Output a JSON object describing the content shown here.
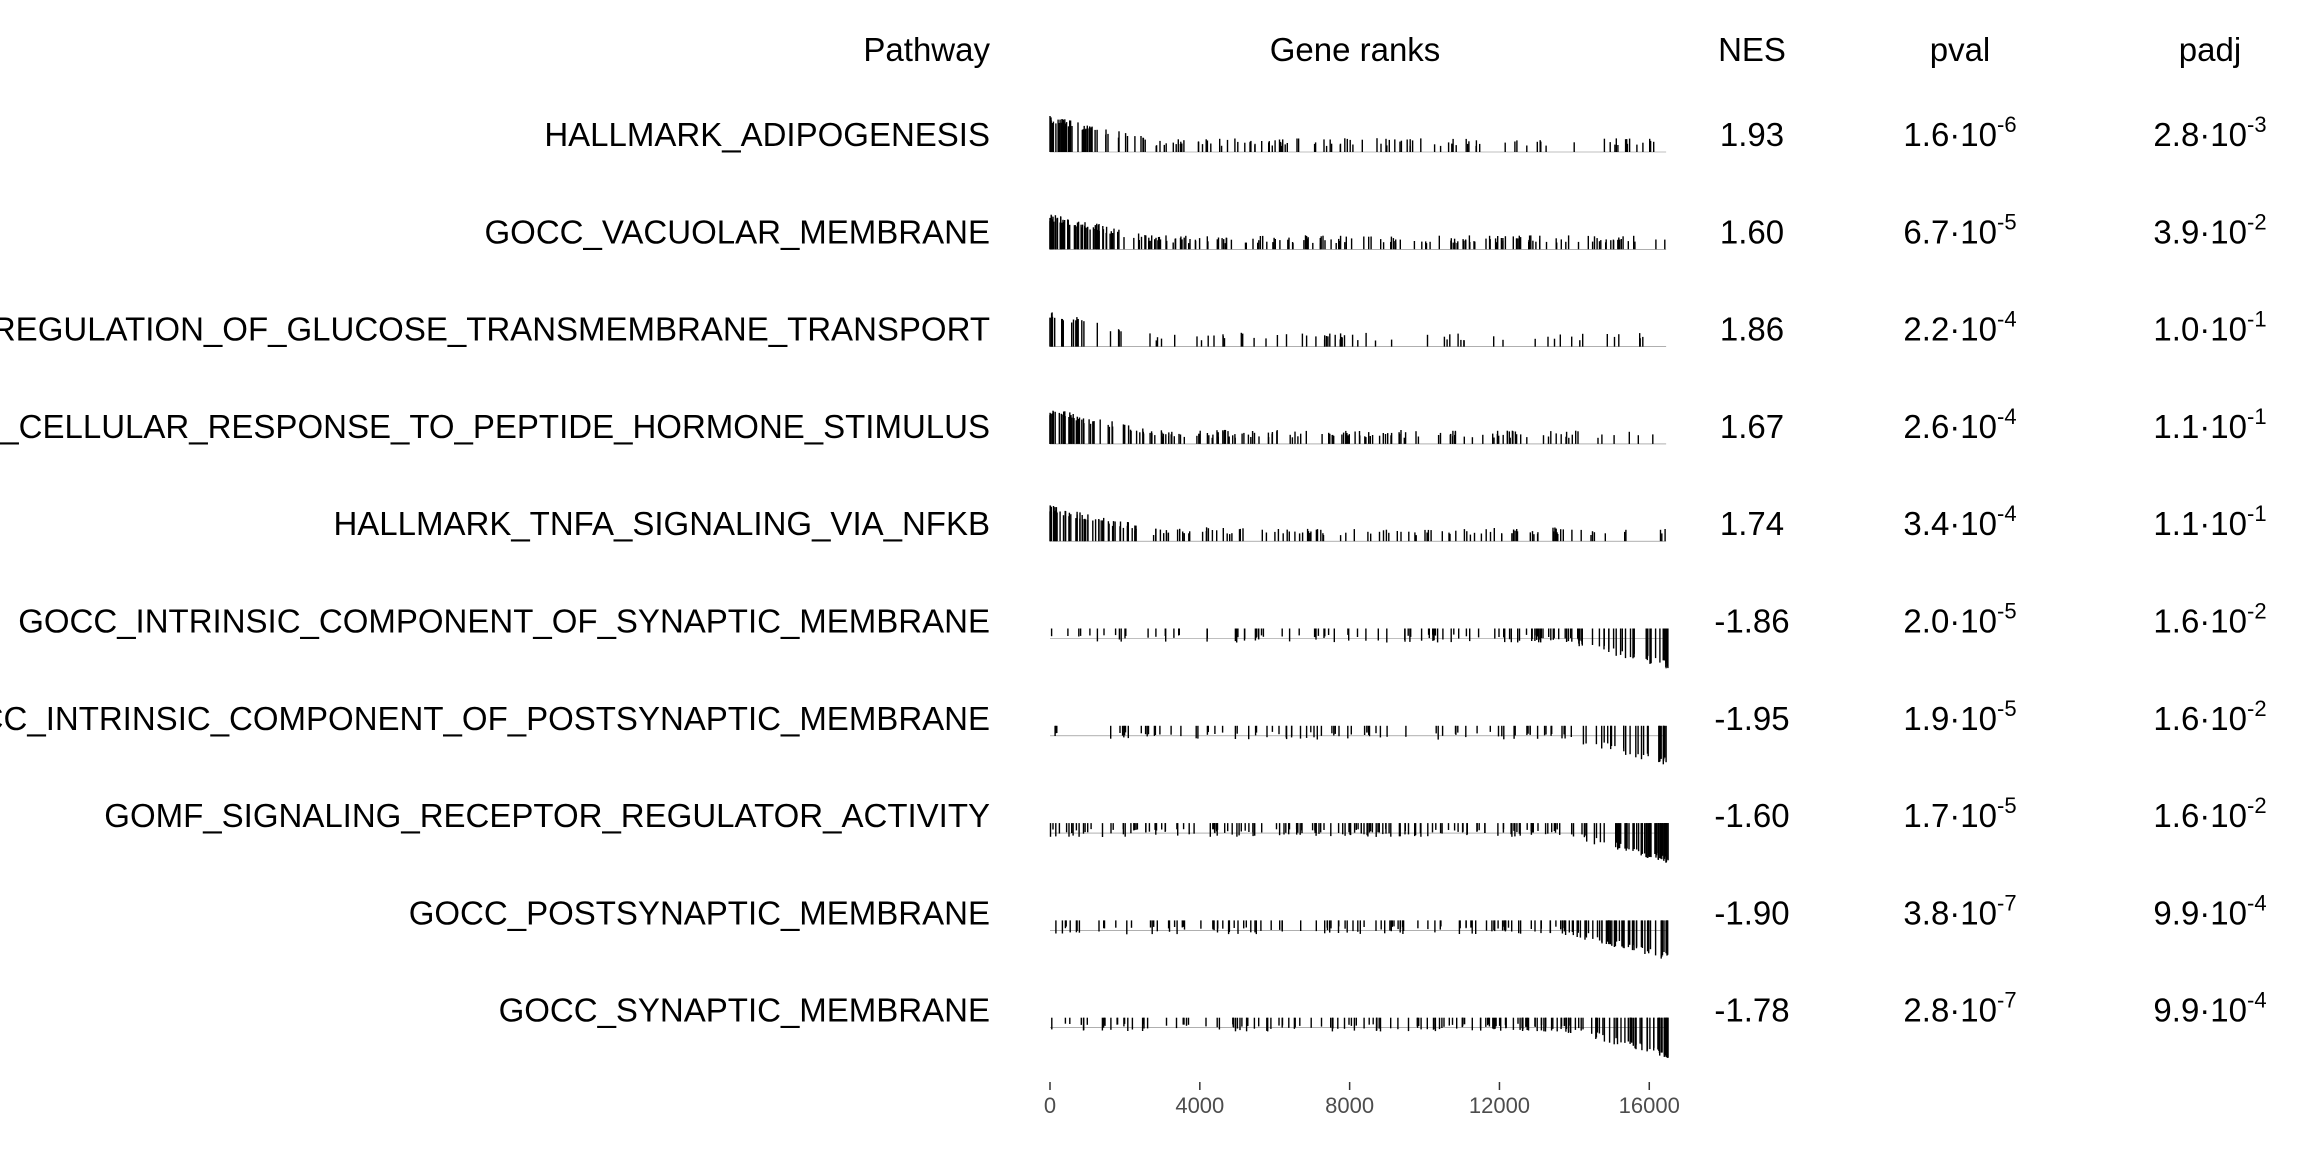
{
  "chart_data": {
    "type": "table",
    "columns": {
      "pathway": "Pathway",
      "gene_ranks": "Gene ranks",
      "nes": "NES",
      "pval": "pval",
      "padj": "padj"
    },
    "x_axis": {
      "range": [
        0,
        16500
      ],
      "ticks": [
        0,
        4000,
        8000,
        12000,
        16000
      ],
      "tick_labels": [
        "0",
        "4000",
        "8000",
        "12000",
        "16000"
      ]
    },
    "rows": [
      {
        "pathway": "HALLMARK_ADIPOGENESIS",
        "nes": "1.93",
        "pval": {
          "mantissa": "1.6",
          "base": "10",
          "exp": "-6"
        },
        "padj": {
          "mantissa": "2.8",
          "base": "10",
          "exp": "-3"
        },
        "direction": "up",
        "density": 0.55
      },
      {
        "pathway": "GOCC_VACUOLAR_MEMBRANE",
        "nes": "1.60",
        "pval": {
          "mantissa": "6.7",
          "base": "10",
          "exp": "-5"
        },
        "padj": {
          "mantissa": "3.9",
          "base": "10",
          "exp": "-2"
        },
        "direction": "up",
        "density": 0.95
      },
      {
        "pathway": "GOBP_POSITIVE_REGULATION_OF_GLUCOSE_TRANSMEMBRANE_TRANSPORT",
        "nes": "1.86",
        "pval": {
          "mantissa": "2.2",
          "base": "10",
          "exp": "-4"
        },
        "padj": {
          "mantissa": "1.0",
          "base": "10",
          "exp": "-1"
        },
        "direction": "up",
        "density": 0.12
      },
      {
        "pathway": "GOBP_CELLULAR_RESPONSE_TO_PEPTIDE_HORMONE_STIMULUS",
        "nes": "1.67",
        "pval": {
          "mantissa": "2.6",
          "base": "10",
          "exp": "-4"
        },
        "padj": {
          "mantissa": "1.1",
          "base": "10",
          "exp": "-1"
        },
        "direction": "up",
        "density": 0.7
      },
      {
        "pathway": "HALLMARK_TNFA_SIGNALING_VIA_NFKB",
        "nes": "1.74",
        "pval": {
          "mantissa": "3.4",
          "base": "10",
          "exp": "-4"
        },
        "padj": {
          "mantissa": "1.1",
          "base": "10",
          "exp": "-1"
        },
        "direction": "up",
        "density": 0.6
      },
      {
        "pathway": "GOCC_INTRINSIC_COMPONENT_OF_SYNAPTIC_MEMBRANE",
        "nes": "-1.86",
        "pval": {
          "mantissa": "2.0",
          "base": "10",
          "exp": "-5"
        },
        "padj": {
          "mantissa": "1.6",
          "base": "10",
          "exp": "-2"
        },
        "direction": "down",
        "density": 0.45
      },
      {
        "pathway": "GOCC_INTRINSIC_COMPONENT_OF_POSTSYNAPTIC_MEMBRANE",
        "nes": "-1.95",
        "pval": {
          "mantissa": "1.9",
          "base": "10",
          "exp": "-5"
        },
        "padj": {
          "mantissa": "1.6",
          "base": "10",
          "exp": "-2"
        },
        "direction": "down",
        "density": 0.3
      },
      {
        "pathway": "GOMF_SIGNALING_RECEPTOR_REGULATOR_ACTIVITY",
        "nes": "-1.60",
        "pval": {
          "mantissa": "1.7",
          "base": "10",
          "exp": "-5"
        },
        "padj": {
          "mantissa": "1.6",
          "base": "10",
          "exp": "-2"
        },
        "direction": "down",
        "density": 0.9
      },
      {
        "pathway": "GOCC_POSTSYNAPTIC_MEMBRANE",
        "nes": "-1.90",
        "pval": {
          "mantissa": "3.8",
          "base": "10",
          "exp": "-7"
        },
        "padj": {
          "mantissa": "9.9",
          "base": "10",
          "exp": "-4"
        },
        "direction": "down",
        "density": 0.6
      },
      {
        "pathway": "GOCC_SYNAPTIC_MEMBRANE",
        "nes": "-1.78",
        "pval": {
          "mantissa": "2.8",
          "base": "10",
          "exp": "-7"
        },
        "padj": {
          "mantissa": "9.9",
          "base": "10",
          "exp": "-4"
        },
        "direction": "down",
        "density": 0.75
      }
    ]
  }
}
